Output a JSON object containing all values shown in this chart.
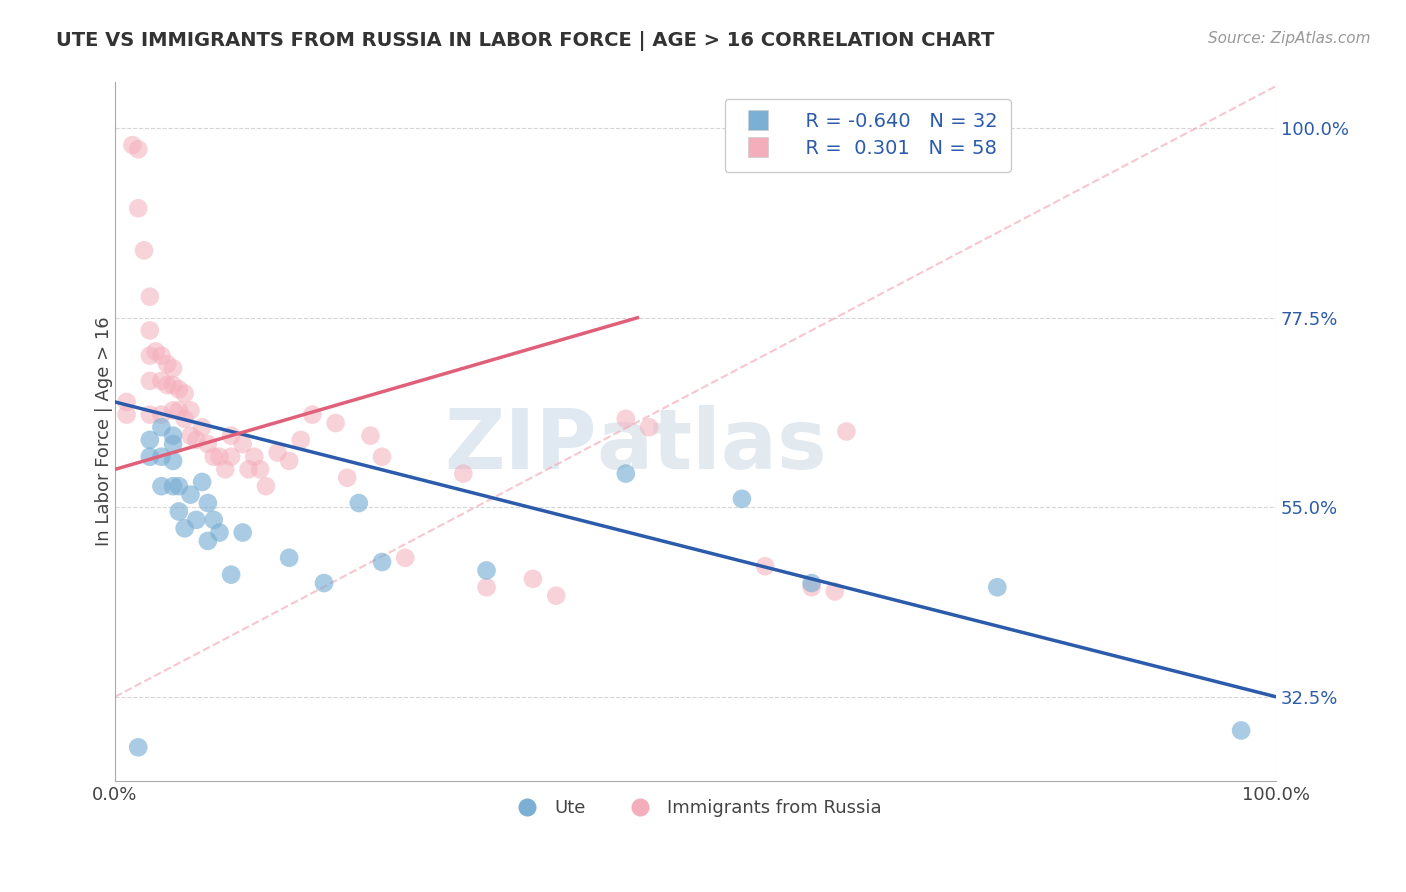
{
  "title": "UTE VS IMMIGRANTS FROM RUSSIA IN LABOR FORCE | AGE > 16 CORRELATION CHART",
  "source_text": "Source: ZipAtlas.com",
  "ylabel": "In Labor Force | Age > 16",
  "legend_blue_label": "Ute",
  "legend_pink_label": "Immigrants from Russia",
  "legend_blue_r": "R = -0.640",
  "legend_pink_r": "R =  0.301",
  "legend_blue_n": "N = 32",
  "legend_pink_n": "N = 58",
  "xlim": [
    0.0,
    1.0
  ],
  "ylim": [
    0.225,
    1.055
  ],
  "yticks": [
    0.325,
    0.55,
    0.775,
    1.0
  ],
  "ytick_labels": [
    "32.5%",
    "55.0%",
    "77.5%",
    "100.0%"
  ],
  "xtick_labels": [
    "0.0%",
    "100.0%"
  ],
  "xticks": [
    0.0,
    1.0
  ],
  "blue_color": "#7BAFD4",
  "pink_color": "#F4AEBB",
  "blue_line_color": "#2B5BAA",
  "pink_line_color": "#E0607A",
  "dashed_line_color": "#F4AEBB",
  "watermark_zip": "ZIP",
  "watermark_atlas": "atlas",
  "background_color": "#FFFFFF",
  "grid_color": "#CCCCCC",
  "blue_scatter_x": [
    0.02,
    0.03,
    0.03,
    0.04,
    0.04,
    0.04,
    0.05,
    0.05,
    0.05,
    0.05,
    0.055,
    0.055,
    0.06,
    0.065,
    0.07,
    0.075,
    0.08,
    0.08,
    0.085,
    0.09,
    0.1,
    0.11,
    0.15,
    0.18,
    0.21,
    0.23,
    0.32,
    0.44,
    0.54,
    0.6,
    0.76,
    0.97
  ],
  "blue_scatter_y": [
    0.265,
    0.63,
    0.61,
    0.645,
    0.61,
    0.575,
    0.635,
    0.625,
    0.605,
    0.575,
    0.575,
    0.545,
    0.525,
    0.565,
    0.535,
    0.58,
    0.555,
    0.51,
    0.535,
    0.52,
    0.47,
    0.52,
    0.49,
    0.46,
    0.555,
    0.485,
    0.475,
    0.59,
    0.56,
    0.46,
    0.455,
    0.285
  ],
  "pink_scatter_x": [
    0.01,
    0.01,
    0.015,
    0.02,
    0.02,
    0.025,
    0.03,
    0.03,
    0.03,
    0.03,
    0.03,
    0.035,
    0.04,
    0.04,
    0.04,
    0.045,
    0.045,
    0.05,
    0.05,
    0.05,
    0.055,
    0.055,
    0.06,
    0.06,
    0.065,
    0.065,
    0.07,
    0.075,
    0.08,
    0.085,
    0.09,
    0.095,
    0.1,
    0.1,
    0.11,
    0.115,
    0.12,
    0.125,
    0.13,
    0.14,
    0.15,
    0.16,
    0.17,
    0.19,
    0.2,
    0.22,
    0.23,
    0.25,
    0.3,
    0.32,
    0.36,
    0.38,
    0.44,
    0.46,
    0.56,
    0.6,
    0.62,
    0.63
  ],
  "pink_scatter_y": [
    0.675,
    0.66,
    0.98,
    0.975,
    0.905,
    0.855,
    0.8,
    0.76,
    0.73,
    0.7,
    0.66,
    0.735,
    0.73,
    0.7,
    0.66,
    0.72,
    0.695,
    0.715,
    0.695,
    0.665,
    0.69,
    0.665,
    0.685,
    0.655,
    0.665,
    0.635,
    0.63,
    0.645,
    0.625,
    0.61,
    0.61,
    0.595,
    0.635,
    0.61,
    0.625,
    0.595,
    0.61,
    0.595,
    0.575,
    0.615,
    0.605,
    0.63,
    0.66,
    0.65,
    0.585,
    0.635,
    0.61,
    0.49,
    0.59,
    0.455,
    0.465,
    0.445,
    0.655,
    0.645,
    0.48,
    0.455,
    0.45,
    0.64
  ]
}
